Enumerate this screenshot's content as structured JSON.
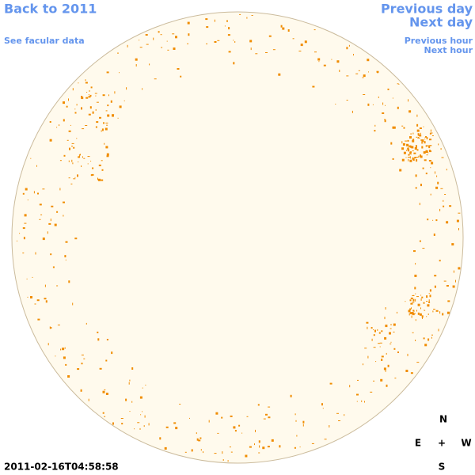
{
  "links": {
    "back": "Back to 2011",
    "facular": "See facular data",
    "previous_day": "Previous day",
    "next_day": "Next day",
    "previous_hour": "Previous hour",
    "next_hour": "Next hour"
  },
  "compass": {
    "north": "N",
    "east": "E",
    "center": "+",
    "west": "W",
    "south": "S"
  },
  "timestamp": "2011-02-16T04:58:58"
}
